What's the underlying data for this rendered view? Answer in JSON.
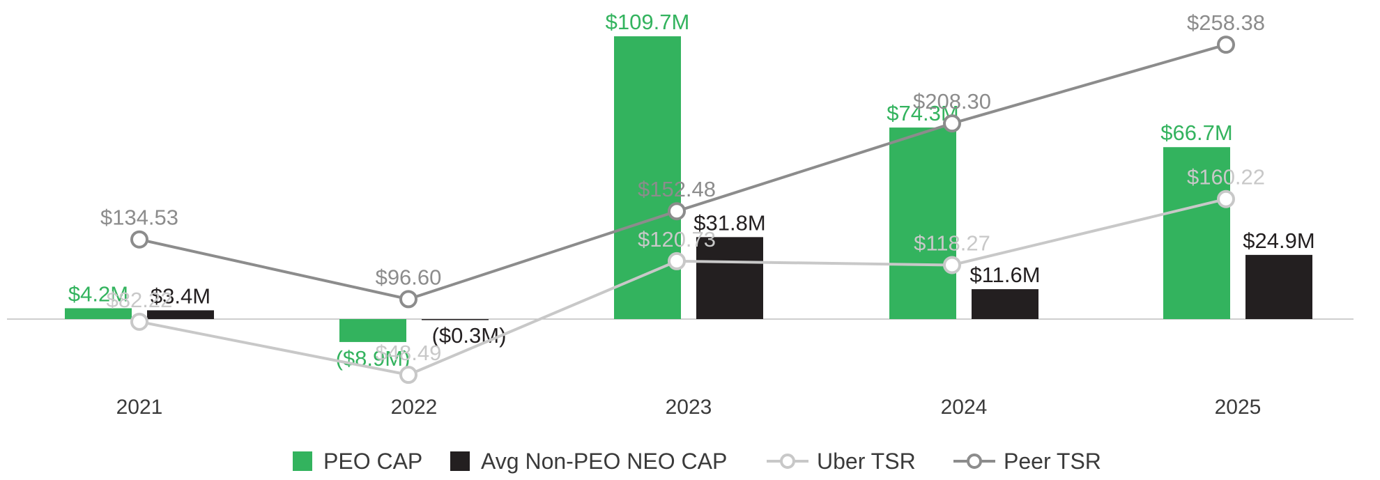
{
  "chart_data": {
    "type": "bar",
    "categories": [
      "2021",
      "2022",
      "2023",
      "2024",
      "2025"
    ],
    "bar_series": [
      {
        "name": "PEO CAP",
        "values": [
          4.2,
          -8.9,
          109.7,
          74.3,
          66.7
        ],
        "labels": [
          "$4.2M",
          "($8.9M)",
          "$109.7M",
          "$74.3M",
          "$66.7M"
        ],
        "color": "#33b35e"
      },
      {
        "name": "Avg Non-PEO NEO CAP",
        "values": [
          3.4,
          -0.3,
          31.8,
          11.6,
          24.9
        ],
        "labels": [
          "$3.4M",
          "($0.3M)",
          "$31.8M",
          "$11.6M",
          "$24.9M"
        ],
        "color": "#231f20"
      }
    ],
    "line_series": [
      {
        "name": "Uber TSR",
        "values": [
          82.22,
          48.49,
          120.73,
          118.27,
          160.22
        ],
        "labels": [
          "$82.22",
          "$48.49",
          "$120.73",
          "$118.27",
          "$160.22"
        ],
        "color": "#c8c8c8"
      },
      {
        "name": "Peer TSR",
        "values": [
          134.53,
          96.6,
          152.48,
          208.3,
          258.38
        ],
        "labels": [
          "$134.53",
          "$96.60",
          "$152.48",
          "$208.30",
          "$258.38"
        ],
        "color": "#8c8c8c"
      }
    ],
    "title": "",
    "xlabel": "",
    "ylabel": "",
    "grid": false,
    "legend_position": "bottom",
    "text_color": "#3a3a3a",
    "axis_color": "#bdbdbd"
  },
  "legend": {
    "peo_cap": "PEO CAP",
    "non_peo_cap": "Avg Non-PEO NEO CAP",
    "uber_tsr": "Uber TSR",
    "peer_tsr": "Peer TSR"
  }
}
